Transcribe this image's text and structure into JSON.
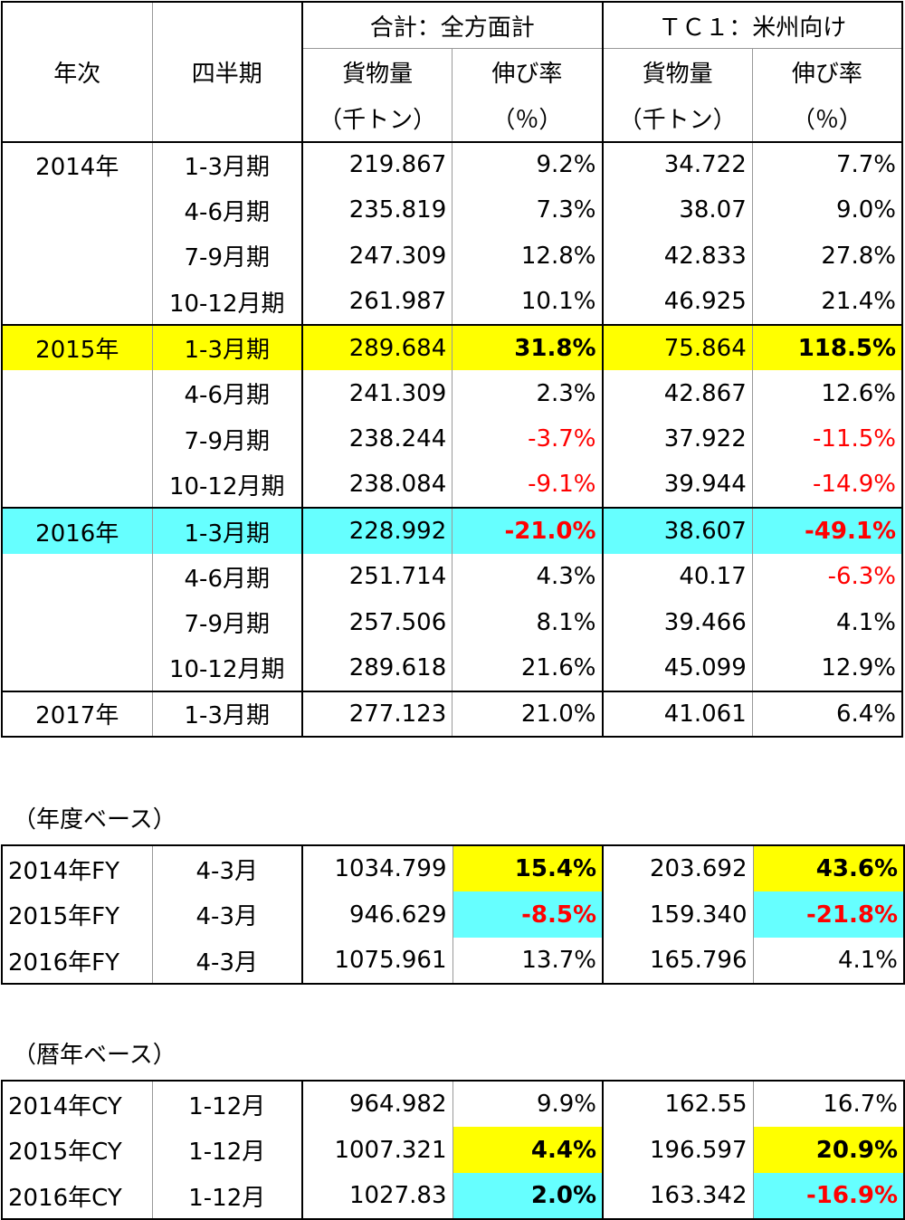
{
  "header": {
    "year": "年次",
    "quarter": "四半期",
    "group_total": "合計：全方面計",
    "group_tc1": "ＴＣ１：米州向け",
    "volume": "貨物量",
    "volume_unit": "（千トン）",
    "growth": "伸び率",
    "growth_unit": "（％）"
  },
  "rows": [
    {
      "year": "2014年",
      "q": "1-3月期",
      "v1": "219.867",
      "g1": "9.2%",
      "v2": "34.722",
      "g2": "7.7%"
    },
    {
      "year": "",
      "q": "4-6月期",
      "v1": "235.819",
      "g1": "7.3%",
      "v2": "38.07",
      "g2": "9.0%"
    },
    {
      "year": "",
      "q": "7-9月期",
      "v1": "247.309",
      "g1": "12.8%",
      "v2": "42.833",
      "g2": "27.8%"
    },
    {
      "year": "",
      "q": "10-12月期",
      "v1": "261.987",
      "g1": "10.1%",
      "v2": "46.925",
      "g2": "21.4%"
    },
    {
      "year": "2015年",
      "q": "1-3月期",
      "v1": "289.684",
      "g1": "31.8%",
      "v2": "75.864",
      "g2": "118.5%"
    },
    {
      "year": "",
      "q": "4-6月期",
      "v1": "241.309",
      "g1": "2.3%",
      "v2": "42.867",
      "g2": "12.6%"
    },
    {
      "year": "",
      "q": "7-9月期",
      "v1": "238.244",
      "g1": "-3.7%",
      "v2": "37.922",
      "g2": "-11.5%"
    },
    {
      "year": "",
      "q": "10-12月期",
      "v1": "238.084",
      "g1": "-9.1%",
      "v2": "39.944",
      "g2": "-14.9%"
    },
    {
      "year": "2016年",
      "q": "1-3月期",
      "v1": "228.992",
      "g1": "-21.0%",
      "v2": "38.607",
      "g2": "-49.1%"
    },
    {
      "year": "",
      "q": "4-6月期",
      "v1": "251.714",
      "g1": "4.3%",
      "v2": "40.17",
      "g2": "-6.3%"
    },
    {
      "year": "",
      "q": "7-9月期",
      "v1": "257.506",
      "g1": "8.1%",
      "v2": "39.466",
      "g2": "4.1%"
    },
    {
      "year": "",
      "q": "10-12月期",
      "v1": "289.618",
      "g1": "21.6%",
      "v2": "45.099",
      "g2": "12.9%"
    },
    {
      "year": "2017年",
      "q": "1-3月期",
      "v1": "277.123",
      "g1": "21.0%",
      "v2": "41.061",
      "g2": "6.4%"
    }
  ],
  "fy_label": "（年度ベース）",
  "fy_rows": [
    {
      "year": "2014年FY",
      "q": "4-3月",
      "v1": "1034.799",
      "g1": "15.4%",
      "v2": "203.692",
      "g2": "43.6%"
    },
    {
      "year": "2015年FY",
      "q": "4-3月",
      "v1": "946.629",
      "g1": "-8.5%",
      "v2": "159.340",
      "g2": "-21.8%"
    },
    {
      "year": "2016年FY",
      "q": "4-3月",
      "v1": "1075.961",
      "g1": "13.7%",
      "v2": "165.796",
      "g2": "4.1%"
    }
  ],
  "cy_label": "（暦年ベース）",
  "cy_rows": [
    {
      "year": "2014年CY",
      "q": "1-12月",
      "v1": "964.982",
      "g1": "9.9%",
      "v2": "162.55",
      "g2": "16.7%"
    },
    {
      "year": "2015年CY",
      "q": "1-12月",
      "v1": "1007.321",
      "g1": "4.4%",
      "v2": "196.597",
      "g2": "20.9%"
    },
    {
      "year": "2016年CY",
      "q": "1-12月",
      "v1": "1027.83",
      "g1": "2.0%",
      "v2": "163.342",
      "g2": "-16.9%"
    }
  ],
  "colors": {
    "highlight_yellow": "#ffff00",
    "highlight_cyan": "#66ffff",
    "negative": "#ff0000"
  }
}
